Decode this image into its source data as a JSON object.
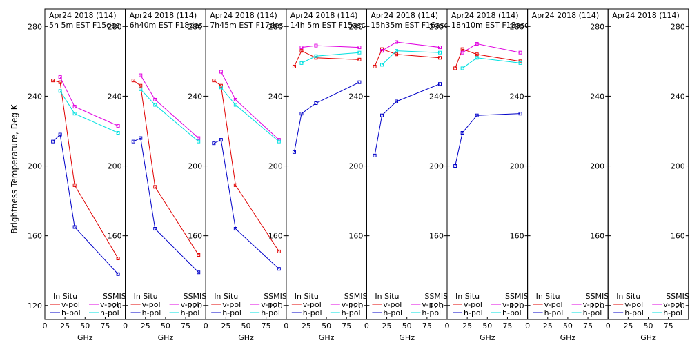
{
  "chart_data": {
    "type": "line",
    "ylabel": "Brightness Temperature, Deg K",
    "xlabel": "GHz",
    "ylim": [
      112,
      290
    ],
    "xlim": [
      0,
      100
    ],
    "yticks": [
      120,
      160,
      200,
      240,
      280
    ],
    "xticks": [
      0,
      25,
      50,
      75
    ],
    "colors": {
      "insitu_v": "#e00000",
      "insitu_h": "#0000c8",
      "ssmis_v": "#e000e0",
      "ssmis_h": "#00e0e0"
    },
    "legend": {
      "insitu_title": "In Situ",
      "ssmis_title": "SSMIS",
      "vpol": "v-pol",
      "hpol": "h-pol"
    },
    "panels": [
      {
        "title1": "Apr24 2018 (114)",
        "title2": "5h 5m EST F15des",
        "insitu_v": {
          "x": [
            10,
            19,
            37,
            91
          ],
          "y": [
            249,
            248,
            189,
            147
          ]
        },
        "insitu_h": {
          "x": [
            10,
            19,
            37,
            91
          ],
          "y": [
            214,
            218,
            165,
            138
          ]
        },
        "ssmis_v": {
          "x": [
            19,
            37,
            91
          ],
          "y": [
            251,
            234,
            223
          ]
        },
        "ssmis_h": {
          "x": [
            19,
            37,
            91
          ],
          "y": [
            243,
            230,
            219
          ]
        }
      },
      {
        "title1": "Apr24 2018 (114)",
        "title2": "6h40m EST F18des",
        "insitu_v": {
          "x": [
            10,
            19,
            37,
            91
          ],
          "y": [
            249,
            246,
            188,
            149
          ]
        },
        "insitu_h": {
          "x": [
            10,
            19,
            37,
            91
          ],
          "y": [
            214,
            216,
            164,
            139
          ]
        },
        "ssmis_v": {
          "x": [
            19,
            37,
            91
          ],
          "y": [
            252,
            238,
            216
          ]
        },
        "ssmis_h": {
          "x": [
            19,
            37,
            91
          ],
          "y": [
            244,
            235,
            214
          ]
        }
      },
      {
        "title1": "Apr24 2018 (114)",
        "title2": "7h45m EST F17des",
        "insitu_v": {
          "x": [
            10,
            19,
            37,
            91
          ],
          "y": [
            249,
            246,
            189,
            151
          ]
        },
        "insitu_h": {
          "x": [
            10,
            19,
            37,
            91
          ],
          "y": [
            213,
            215,
            164,
            141
          ]
        },
        "ssmis_v": {
          "x": [
            19,
            37,
            91
          ],
          "y": [
            254,
            238,
            215
          ]
        },
        "ssmis_h": {
          "x": [
            19,
            37,
            91
          ],
          "y": [
            245,
            235,
            214
          ]
        }
      },
      {
        "title1": "Apr24 2018 (114)",
        "title2": "14h 5m EST F15asc",
        "insitu_v": {
          "x": [
            10,
            19,
            37,
            91
          ],
          "y": [
            257,
            266,
            262,
            261
          ]
        },
        "insitu_h": {
          "x": [
            10,
            19,
            37,
            91
          ],
          "y": [
            208,
            230,
            236,
            248
          ]
        },
        "ssmis_v": {
          "x": [
            19,
            37,
            91
          ],
          "y": [
            268,
            269,
            268
          ]
        },
        "ssmis_h": {
          "x": [
            19,
            37,
            91
          ],
          "y": [
            259,
            263,
            265
          ]
        }
      },
      {
        "title1": "Apr24 2018 (114)",
        "title2": "15h35m EST F16asc",
        "insitu_v": {
          "x": [
            10,
            19,
            37,
            91
          ],
          "y": [
            257,
            267,
            264,
            262
          ]
        },
        "insitu_h": {
          "x": [
            10,
            19,
            37,
            91
          ],
          "y": [
            206,
            229,
            237,
            247
          ]
        },
        "ssmis_v": {
          "x": [
            19,
            37,
            91
          ],
          "y": [
            266,
            271,
            268
          ]
        },
        "ssmis_h": {
          "x": [
            19,
            37,
            91
          ],
          "y": [
            258,
            266,
            265
          ]
        }
      },
      {
        "title1": "Apr24 2018 (114)",
        "title2": "18h10m EST F18asc",
        "insitu_v": {
          "x": [
            10,
            19,
            37,
            91
          ],
          "y": [
            256,
            267,
            264,
            260
          ]
        },
        "insitu_h": {
          "x": [
            10,
            19,
            37,
            91
          ],
          "y": [
            200,
            219,
            229,
            230
          ]
        },
        "ssmis_v": {
          "x": [
            19,
            37,
            91
          ],
          "y": [
            265,
            270,
            265
          ]
        },
        "ssmis_h": {
          "x": [
            19,
            37,
            91
          ],
          "y": [
            256,
            262,
            259
          ]
        }
      },
      {
        "title1": "Apr24 2018 (114)",
        "title2": ""
      },
      {
        "title1": "Apr24 2018 (114)",
        "title2": ""
      }
    ]
  }
}
